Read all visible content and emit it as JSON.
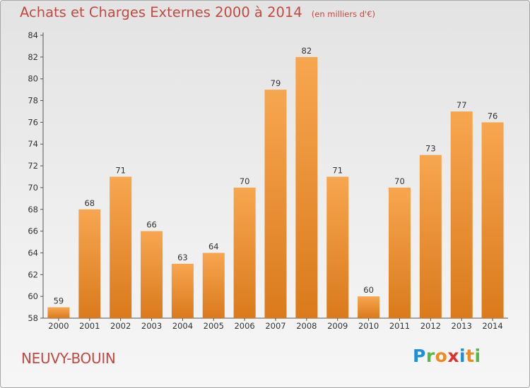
{
  "header": {
    "title": "Achats et Charges Externes 2000 à 2014",
    "subtitle": "(en milliers d'€)"
  },
  "footer": {
    "commune": "NEUVY-BOUIN",
    "logo_letters": [
      {
        "char": "P",
        "color": "#1f8fd8"
      },
      {
        "char": "r",
        "color": "#57b848"
      },
      {
        "char": "o",
        "color": "#f08a1c"
      },
      {
        "char": "x",
        "color": "#e2312d"
      },
      {
        "char": "i",
        "color": "#1f8fd8"
      },
      {
        "char": "t",
        "color": "#f08a1c"
      },
      {
        "char": "i",
        "color": "#57b848"
      }
    ]
  },
  "colors": {
    "title": "#c14a44",
    "bar_light": "#f7a650",
    "bar_dark": "#da7a1c"
  },
  "chart_data": {
    "type": "bar",
    "title": "Achats et Charges Externes 2000 à 2014",
    "subtitle": "(en milliers d'€)",
    "xlabel": "",
    "ylabel": "",
    "categories": [
      "2000",
      "2001",
      "2002",
      "2003",
      "2004",
      "2005",
      "2006",
      "2007",
      "2008",
      "2009",
      "2010",
      "2011",
      "2012",
      "2013",
      "2014"
    ],
    "values": [
      59,
      68,
      71,
      66,
      63,
      64,
      70,
      79,
      82,
      71,
      60,
      70,
      73,
      77,
      76
    ],
    "ylim": [
      58,
      84
    ],
    "yticks": [
      58,
      60,
      62,
      64,
      66,
      68,
      70,
      72,
      74,
      76,
      78,
      80,
      82,
      84
    ],
    "grid": false,
    "data_labels": true
  }
}
